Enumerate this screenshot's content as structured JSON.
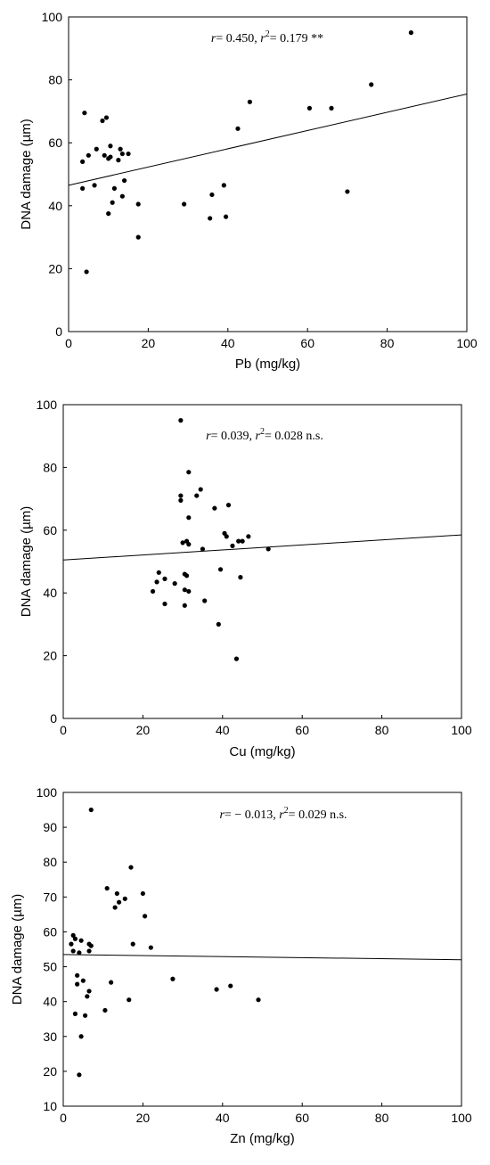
{
  "chart_data": [
    {
      "type": "scatter",
      "xlabel": "Pb (mg/kg)",
      "ylabel": "DNA damage (µm)",
      "annotation": {
        "r_label": "r",
        "r_text": "= 0.450, ",
        "r2_label": "r",
        "r2_text": "= 0.179 **"
      },
      "xlim": [
        0,
        100
      ],
      "ylim": [
        0,
        100
      ],
      "xticks": [
        "0",
        "20",
        "40",
        "60",
        "80",
        "100"
      ],
      "yticks": [
        "0",
        "20",
        "40",
        "60",
        "80",
        "100"
      ],
      "fit_line": {
        "y_at_xmin": 46.5,
        "y_at_xmax": 75.5
      },
      "points": [
        [
          3.5,
          54
        ],
        [
          4,
          69.5
        ],
        [
          3.5,
          45.5
        ],
        [
          4.5,
          19
        ],
        [
          5,
          56
        ],
        [
          6.5,
          46.5
        ],
        [
          7,
          58
        ],
        [
          8.5,
          67
        ],
        [
          9,
          56
        ],
        [
          9.5,
          68
        ],
        [
          10,
          55
        ],
        [
          10.5,
          55.5
        ],
        [
          10.5,
          59
        ],
        [
          10,
          37.5
        ],
        [
          11,
          41
        ],
        [
          11.5,
          45.5
        ],
        [
          12.5,
          54.5
        ],
        [
          13,
          58
        ],
        [
          13.5,
          43
        ],
        [
          13.5,
          56.5
        ],
        [
          14,
          48
        ],
        [
          15,
          56.5
        ],
        [
          17.5,
          40.5
        ],
        [
          17.5,
          30
        ],
        [
          29,
          40.5
        ],
        [
          35.5,
          36
        ],
        [
          36,
          43.5
        ],
        [
          39,
          46.5
        ],
        [
          39.5,
          36.5
        ],
        [
          42.5,
          64.5
        ],
        [
          45.5,
          73
        ],
        [
          60.5,
          71
        ],
        [
          66,
          71
        ],
        [
          70,
          44.5
        ],
        [
          76,
          78.5
        ],
        [
          86,
          95
        ]
      ]
    },
    {
      "type": "scatter",
      "xlabel": "Cu (mg/kg)",
      "ylabel": "DNA damage (µm)",
      "annotation": {
        "r_label": "r",
        "r_text": "= 0.039, ",
        "r2_label": "r",
        "r2_text": "= 0.028 n.s."
      },
      "xlim": [
        0,
        100
      ],
      "ylim": [
        0,
        100
      ],
      "xticks": [
        "0",
        "20",
        "40",
        "60",
        "80",
        "100"
      ],
      "yticks": [
        "0",
        "20",
        "40",
        "60",
        "80",
        "100"
      ],
      "fit_line": {
        "y_at_xmin": 50.5,
        "y_at_xmax": 58.5
      },
      "points": [
        [
          22.5,
          40.5
        ],
        [
          23.5,
          43.5
        ],
        [
          24,
          46.5
        ],
        [
          25.5,
          36.5
        ],
        [
          25.5,
          44.5
        ],
        [
          28,
          43
        ],
        [
          29.5,
          95
        ],
        [
          29.5,
          69.5
        ],
        [
          29.5,
          71
        ],
        [
          30,
          56
        ],
        [
          30.5,
          46
        ],
        [
          30.5,
          36
        ],
        [
          30.5,
          41
        ],
        [
          31,
          56.5
        ],
        [
          31,
          45.5
        ],
        [
          31.5,
          40.5
        ],
        [
          31.5,
          78.5
        ],
        [
          31.5,
          55.5
        ],
        [
          31.5,
          64
        ],
        [
          33.5,
          71
        ],
        [
          34.5,
          73
        ],
        [
          35,
          54
        ],
        [
          35.5,
          37.5
        ],
        [
          38,
          67
        ],
        [
          39,
          30
        ],
        [
          39.5,
          47.5
        ],
        [
          40.5,
          59
        ],
        [
          41,
          58
        ],
        [
          41.5,
          68
        ],
        [
          42.5,
          55
        ],
        [
          43.5,
          19
        ],
        [
          44,
          56.5
        ],
        [
          44.5,
          45
        ],
        [
          45,
          56.5
        ],
        [
          46.5,
          58
        ],
        [
          51.5,
          54
        ]
      ]
    },
    {
      "type": "scatter",
      "xlabel": "Zn (mg/kg)",
      "ylabel": "DNA damage (µm)",
      "annotation": {
        "r_label": "r",
        "r_text": "= − 0.013, ",
        "r2_label": "r",
        "r2_text": "= 0.029 n.s."
      },
      "xlim": [
        0,
        100
      ],
      "ylim": [
        10,
        100
      ],
      "xticks": [
        "0",
        "20",
        "40",
        "60",
        "80",
        "100"
      ],
      "yticks": [
        "10",
        "20",
        "30",
        "40",
        "50",
        "60",
        "70",
        "80",
        "90",
        "100"
      ],
      "fit_line": {
        "y_at_xmin": 53.5,
        "y_at_xmax": 52
      },
      "points": [
        [
          2,
          56.5
        ],
        [
          2.5,
          54.5
        ],
        [
          2.5,
          59
        ],
        [
          3,
          58
        ],
        [
          3,
          36.5
        ],
        [
          3.5,
          47.5
        ],
        [
          3.5,
          45
        ],
        [
          4,
          54
        ],
        [
          4,
          19
        ],
        [
          4.5,
          57.5
        ],
        [
          4.5,
          30
        ],
        [
          5,
          46
        ],
        [
          5.5,
          36
        ],
        [
          6,
          41.5
        ],
        [
          6.5,
          54.5
        ],
        [
          6.5,
          43
        ],
        [
          6.5,
          56.5
        ],
        [
          7,
          56
        ],
        [
          7,
          95
        ],
        [
          10.5,
          37.5
        ],
        [
          11,
          72.5
        ],
        [
          12,
          45.5
        ],
        [
          13,
          67
        ],
        [
          13.5,
          71
        ],
        [
          14,
          68.5
        ],
        [
          15.5,
          69.5
        ],
        [
          16.5,
          40.5
        ],
        [
          17,
          78.5
        ],
        [
          17.5,
          56.5
        ],
        [
          20,
          71
        ],
        [
          20.5,
          64.5
        ],
        [
          22,
          55.5
        ],
        [
          27.5,
          46.5
        ],
        [
          38.5,
          43.5
        ],
        [
          42,
          44.5
        ],
        [
          49,
          40.5
        ]
      ]
    }
  ]
}
